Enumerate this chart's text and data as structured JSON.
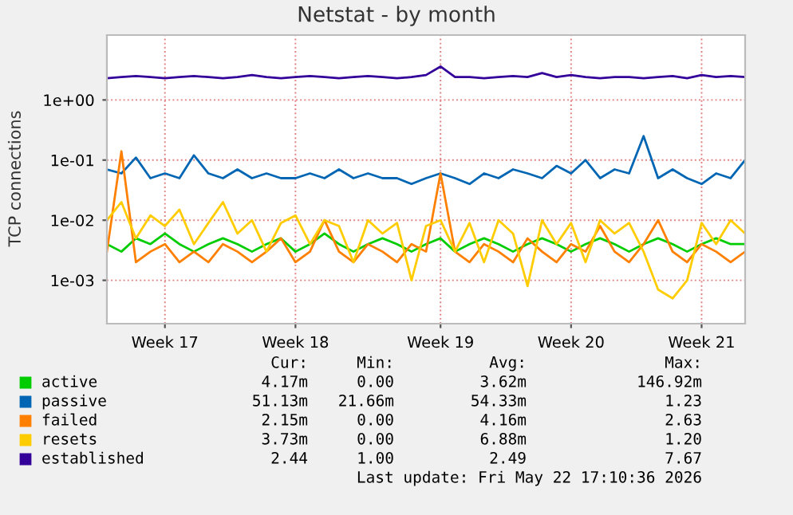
{
  "chart_data": {
    "type": "line",
    "title": "Netstat - by month",
    "ylabel": "TCP connections",
    "log": "y",
    "grid": true,
    "legend": "bottom",
    "marker": "none",
    "line_style": "solid",
    "categories": [
      null,
      null,
      null,
      null,
      "Week 17",
      null,
      null,
      null,
      null,
      null,
      null,
      null,
      null,
      "Week 18",
      null,
      null,
      null,
      null,
      null,
      null,
      null,
      null,
      null,
      "Week 19",
      null,
      null,
      null,
      null,
      null,
      null,
      null,
      null,
      "Week 20",
      null,
      null,
      null,
      null,
      null,
      null,
      null,
      null,
      "Week 21",
      null,
      null,
      null
    ],
    "ylim": [
      0.00019,
      12
    ],
    "yticks": [
      {
        "value": 0.001,
        "label": "1e-03"
      },
      {
        "value": 0.01,
        "label": "1e-02"
      },
      {
        "value": 0.1,
        "label": "1e-01"
      },
      {
        "value": 1,
        "label": "1e+00"
      }
    ],
    "series": [
      {
        "name": "active",
        "color": "#00cc00",
        "values": [
          0.004,
          0.003,
          0.005,
          0.004,
          0.006,
          0.004,
          0.003,
          0.004,
          0.005,
          0.004,
          0.003,
          0.004,
          0.005,
          0.003,
          0.004,
          0.006,
          0.004,
          0.003,
          0.004,
          0.005,
          0.004,
          0.003,
          0.004,
          0.005,
          0.003,
          0.004,
          0.005,
          0.004,
          0.003,
          0.004,
          0.005,
          0.004,
          0.003,
          0.004,
          0.005,
          0.004,
          0.003,
          0.004,
          0.005,
          0.004,
          0.003,
          0.004,
          0.005,
          0.004,
          0.004
        ]
      },
      {
        "name": "passive",
        "color": "#0066b3",
        "values": [
          0.07,
          0.06,
          0.11,
          0.05,
          0.06,
          0.05,
          0.12,
          0.06,
          0.05,
          0.07,
          0.05,
          0.06,
          0.05,
          0.05,
          0.06,
          0.05,
          0.07,
          0.05,
          0.06,
          0.05,
          0.05,
          0.04,
          0.05,
          0.06,
          0.05,
          0.04,
          0.06,
          0.05,
          0.07,
          0.06,
          0.05,
          0.08,
          0.06,
          0.1,
          0.05,
          0.07,
          0.06,
          0.25,
          0.05,
          0.07,
          0.05,
          0.04,
          0.06,
          0.05,
          0.1
        ]
      },
      {
        "name": "failed",
        "color": "#ff8000",
        "values": [
          0.003,
          0.14,
          0.002,
          0.003,
          0.004,
          0.002,
          0.003,
          0.002,
          0.004,
          0.003,
          0.002,
          0.003,
          0.005,
          0.002,
          0.003,
          0.01,
          0.003,
          0.002,
          0.004,
          0.003,
          0.002,
          0.004,
          0.003,
          0.06,
          0.003,
          0.002,
          0.004,
          0.003,
          0.002,
          0.005,
          0.003,
          0.002,
          0.004,
          0.003,
          0.008,
          0.003,
          0.002,
          0.004,
          0.01,
          0.003,
          0.002,
          0.004,
          0.003,
          0.002,
          0.003
        ]
      },
      {
        "name": "resets",
        "color": "#ffcc00",
        "values": [
          0.01,
          0.02,
          0.005,
          0.012,
          0.008,
          0.015,
          0.004,
          0.009,
          0.02,
          0.006,
          0.01,
          0.003,
          0.009,
          0.012,
          0.004,
          0.01,
          0.008,
          0.002,
          0.01,
          0.006,
          0.009,
          0.001,
          0.008,
          0.01,
          0.003,
          0.009,
          0.002,
          0.01,
          0.006,
          0.0008,
          0.01,
          0.004,
          0.009,
          0.002,
          0.01,
          0.006,
          0.009,
          0.003,
          0.0007,
          0.0005,
          0.001,
          0.009,
          0.004,
          0.01,
          0.006
        ]
      },
      {
        "name": "established",
        "color": "#330099",
        "values": [
          2.3,
          2.4,
          2.5,
          2.4,
          2.3,
          2.4,
          2.5,
          2.4,
          2.3,
          2.4,
          2.6,
          2.4,
          2.3,
          2.4,
          2.5,
          2.4,
          2.3,
          2.4,
          2.5,
          2.4,
          2.3,
          2.4,
          2.6,
          3.6,
          2.4,
          2.4,
          2.3,
          2.4,
          2.5,
          2.4,
          2.8,
          2.4,
          2.6,
          2.4,
          2.3,
          2.4,
          2.4,
          2.3,
          2.4,
          2.5,
          2.3,
          2.6,
          2.4,
          2.5,
          2.4
        ]
      }
    ],
    "annotations": [
      "Cur:",
      "Min:",
      "Avg:",
      "Max:",
      "4.17m",
      "0.00",
      "3.62m",
      "146.92m",
      "51.13m",
      "21.66m",
      "54.33m",
      "1.23",
      "2.15m",
      "0.00",
      "4.16m",
      "2.63",
      "3.73m",
      "0.00",
      "6.88m",
      "1.20",
      "2.44",
      "1.00",
      "2.49",
      "7.67",
      "Last update: Fri May 22 17:10:36 2026"
    ]
  }
}
